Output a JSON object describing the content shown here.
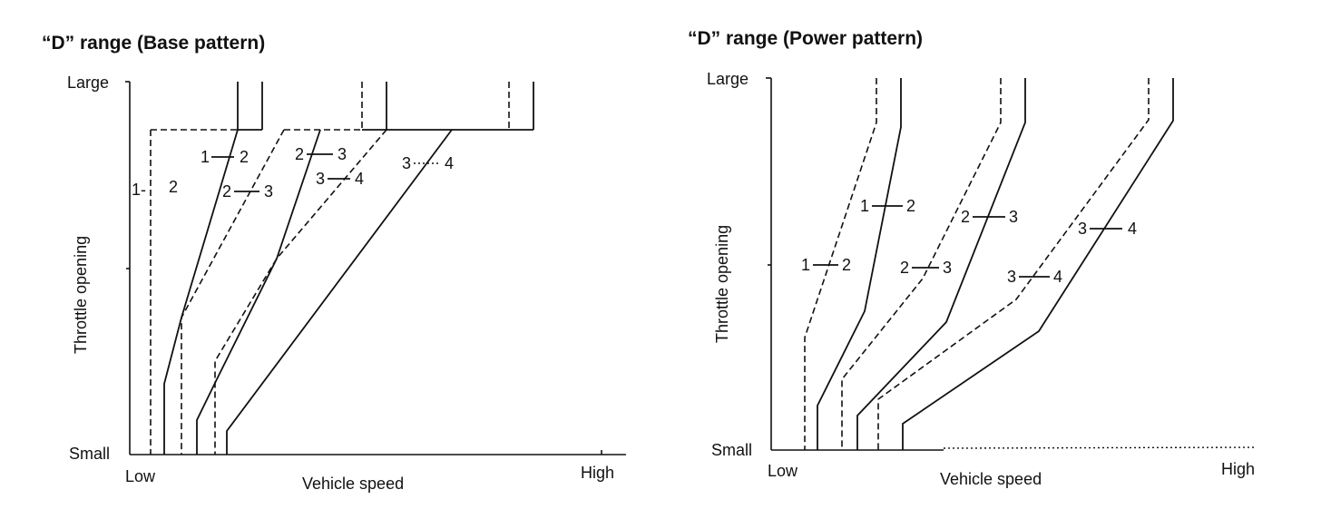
{
  "left_panel": {
    "title": "“D” range (Base pattern)",
    "y_axis_label": "Throttle opening",
    "y_top": "Large",
    "y_bottom": "Small",
    "x_axis_label": "Vehicle speed",
    "x_low": "Low",
    "x_high": "High",
    "labels": [
      "1-",
      "2",
      "1",
      "2",
      "2",
      "3",
      "2",
      "3",
      "3",
      "4",
      "3",
      "4"
    ]
  },
  "right_panel": {
    "title": "“D” range (Power pattern)",
    "y_axis_label": "Throttle opening",
    "y_top": "Large",
    "y_bottom": "Small",
    "x_axis_label": "Vehicle speed",
    "x_low": "Low",
    "x_high": "High",
    "labels": [
      "1",
      "2",
      "1",
      "2",
      "2",
      "3",
      "2",
      "3",
      "3",
      "4",
      "3",
      "4"
    ]
  }
}
